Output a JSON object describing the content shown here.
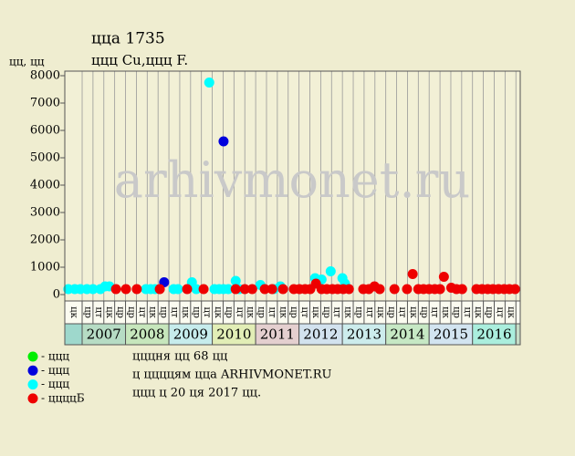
{
  "chart_data": {
    "type": "scatter",
    "title": "ццa 1735",
    "subtitle": "ццц Cu,ццц F.",
    "y_label": "цц, цц",
    "watermark": "arhivmonet.ru",
    "xlim": [
      2006.6,
      2017.1
    ],
    "ylim": [
      0,
      8000
    ],
    "yticks": [
      0,
      1000,
      2000,
      3000,
      4000,
      5000,
      6000,
      7000,
      8000
    ],
    "years": [
      2007,
      2008,
      2009,
      2010,
      2011,
      2012,
      2013,
      2014,
      2015,
      2016
    ],
    "quarters": [
      "цк",
      "цр",
      "цт",
      "цк",
      "цр",
      "цр",
      "цт",
      "цк",
      "цр",
      "цт",
      "цк",
      "цр",
      "цт",
      "цк",
      "цр",
      "цт",
      "цк",
      "цр",
      "цт",
      "цк",
      "цр",
      "цт",
      "цк",
      "цр",
      "цт",
      "цк",
      "цр",
      "цт",
      "цк",
      "цр",
      "цт",
      "цк",
      "цр",
      "цт",
      "цк",
      "цр",
      "цт",
      "цк",
      "цр",
      "цт",
      "цк"
    ],
    "series": [
      {
        "name": "- ццц",
        "color": "#00ee00",
        "x": [],
        "values": []
      },
      {
        "name": "- ццц",
        "color": "#0000dd",
        "x": [
          2008.89,
          2010.26
        ],
        "values": [
          450,
          5600
        ]
      },
      {
        "name": "- ццц",
        "color": "#00ffff",
        "x": [
          2006.68,
          2006.83,
          2006.96,
          2007.11,
          2007.25,
          2007.42,
          2007.53,
          2007.63,
          2008.47,
          2008.58,
          2008.68,
          2009.11,
          2009.21,
          2009.53,
          2009.63,
          2009.93,
          2010.05,
          2010.16,
          2010.26,
          2010.37,
          2010.54,
          2010.62,
          2011.11,
          2011.42,
          2011.57,
          2012.37,
          2012.52,
          2012.73,
          2013.0,
          2013.06
        ],
        "values": [
          200,
          200,
          200,
          200,
          200,
          200,
          300,
          300,
          200,
          200,
          200,
          200,
          200,
          450,
          200,
          7750,
          200,
          200,
          200,
          200,
          500,
          200,
          350,
          200,
          300,
          600,
          550,
          850,
          600,
          400
        ]
      },
      {
        "name": "- ццццБ",
        "color": "#ee0000",
        "x": [
          2007.78,
          2008.01,
          2008.26,
          2008.79,
          2009.42,
          2009.8,
          2010.54,
          2010.75,
          2010.92,
          2011.21,
          2011.38,
          2011.63,
          2011.88,
          2012.01,
          2012.14,
          2012.26,
          2012.39,
          2012.52,
          2012.64,
          2012.77,
          2012.89,
          2013.02,
          2013.15,
          2013.48,
          2013.61,
          2013.74,
          2013.86,
          2014.2,
          2014.49,
          2014.62,
          2014.75,
          2014.87,
          2015.0,
          2015.13,
          2015.25,
          2015.34,
          2015.51,
          2015.63,
          2015.76,
          2016.09,
          2016.22,
          2016.35,
          2016.47,
          2016.6,
          2016.73,
          2016.85,
          2016.98
        ],
        "values": [
          200,
          200,
          200,
          200,
          200,
          200,
          200,
          200,
          200,
          200,
          200,
          200,
          200,
          200,
          200,
          200,
          400,
          200,
          200,
          200,
          200,
          200,
          200,
          200,
          200,
          300,
          200,
          200,
          200,
          750,
          200,
          200,
          200,
          200,
          200,
          650,
          250,
          200,
          200,
          200,
          200,
          200,
          200,
          200,
          200,
          200,
          200
        ]
      }
    ],
    "notes": [
      "цццня цц 68 цц",
      "ц ццццям цца ARHIVMONET.RU",
      "ццц ц 20 ця 2017 цц."
    ]
  }
}
